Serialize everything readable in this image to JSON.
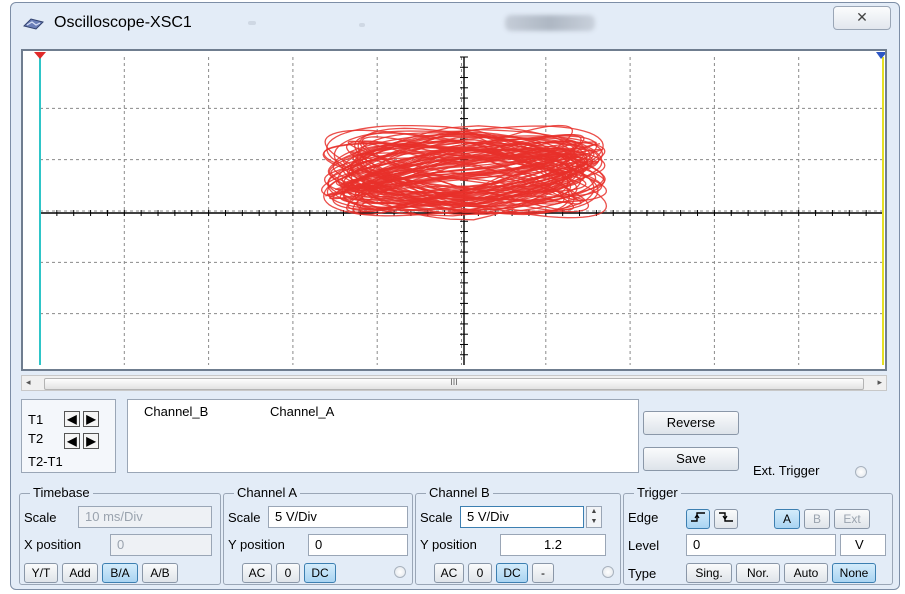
{
  "window": {
    "title": "Oscilloscope-XSC1",
    "close_glyph": "✕"
  },
  "scroll": {
    "left_arrow": "◂",
    "right_arrow": "▸",
    "grip": "III"
  },
  "cursors": {
    "t1_label": "T1",
    "t2_label": "T2",
    "diff_label": "T2-T1",
    "left_glyph": "◀",
    "right_glyph": "▶"
  },
  "readout": {
    "col1": "Channel_B",
    "col2": "Channel_A"
  },
  "actions": {
    "reverse": "Reverse",
    "save": "Save",
    "ext_trigger": "Ext. Trigger"
  },
  "timebase": {
    "title": "Timebase",
    "scale_label": "Scale",
    "scale_value": "10 ms/Div",
    "xpos_label": "X position",
    "xpos_value": "0",
    "modes": [
      "Y/T",
      "Add",
      "B/A",
      "A/B"
    ],
    "active_mode": "B/A"
  },
  "channel_a": {
    "title": "Channel A",
    "scale_label": "Scale",
    "scale_value": "5  V/Div",
    "ypos_label": "Y position",
    "ypos_value": "0",
    "coupling": [
      "AC",
      "0",
      "DC"
    ],
    "active_coupling": "DC"
  },
  "channel_b": {
    "title": "Channel B",
    "scale_label": "Scale",
    "scale_value": "5  V/Div",
    "ypos_label": "Y position",
    "ypos_value": "1.2",
    "coupling": [
      "AC",
      "0",
      "DC",
      "-"
    ],
    "active_coupling": "DC"
  },
  "trigger": {
    "title": "Trigger",
    "edge_label": "Edge",
    "sources": [
      "A",
      "B",
      "Ext"
    ],
    "active_source": "A",
    "level_label": "Level",
    "level_value": "0",
    "level_unit": "V",
    "type_label": "Type",
    "types": [
      "Sing.",
      "Nor.",
      "Auto",
      "None"
    ],
    "active_type": "None"
  },
  "trace": {
    "color": "#e8302a"
  }
}
